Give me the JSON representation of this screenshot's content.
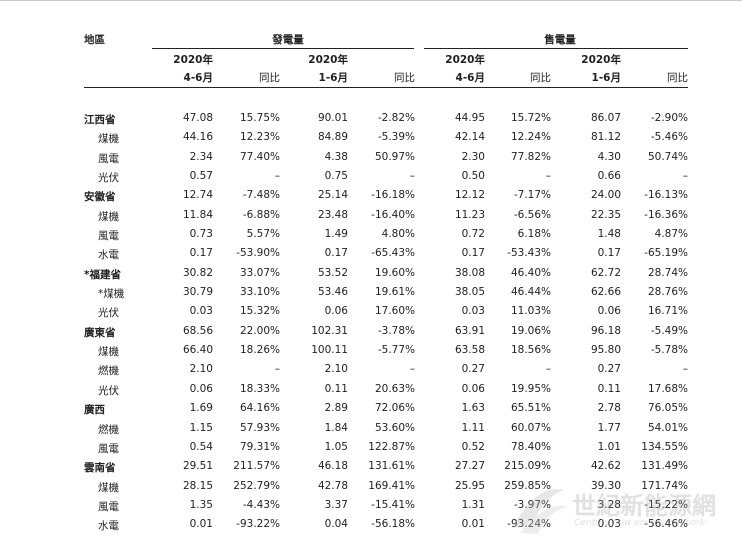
{
  "header": {
    "region_label": "地區",
    "gen_group": "發電量",
    "sales_group": "售電量",
    "cols": [
      {
        "line1": "2020年",
        "line2": "4-6月"
      },
      {
        "line1": "",
        "line2": "同比"
      },
      {
        "line1": "2020年",
        "line2": "1-6月"
      },
      {
        "line1": "",
        "line2": "同比"
      },
      {
        "line1": "2020年",
        "line2": "4-6月"
      },
      {
        "line1": "",
        "line2": "同比"
      },
      {
        "line1": "2020年",
        "line2": "1-6月"
      },
      {
        "line1": "",
        "line2": "同比"
      }
    ]
  },
  "rows": [
    {
      "label": "江西省",
      "type": "prov",
      "v": [
        "47.08",
        "15.75%",
        "90.01",
        "-2.82%",
        "44.95",
        "15.72%",
        "86.07",
        "-2.90%"
      ]
    },
    {
      "label": "煤機",
      "type": "sub",
      "v": [
        "44.16",
        "12.23%",
        "84.89",
        "-5.39%",
        "42.14",
        "12.24%",
        "81.12",
        "-5.46%"
      ]
    },
    {
      "label": "風電",
      "type": "sub",
      "v": [
        "2.34",
        "77.40%",
        "4.38",
        "50.97%",
        "2.30",
        "77.82%",
        "4.30",
        "50.74%"
      ]
    },
    {
      "label": "光伏",
      "type": "sub",
      "v": [
        "0.57",
        "–",
        "0.75",
        "–",
        "0.50",
        "–",
        "0.66",
        "–"
      ]
    },
    {
      "label": "安徽省",
      "type": "prov",
      "v": [
        "12.74",
        "-7.48%",
        "25.14",
        "-16.18%",
        "12.12",
        "-7.17%",
        "24.00",
        "-16.13%"
      ]
    },
    {
      "label": "煤機",
      "type": "sub",
      "v": [
        "11.84",
        "-6.88%",
        "23.48",
        "-16.40%",
        "11.23",
        "-6.56%",
        "22.35",
        "-16.36%"
      ]
    },
    {
      "label": "風電",
      "type": "sub",
      "v": [
        "0.73",
        "5.57%",
        "1.49",
        "4.80%",
        "0.72",
        "6.18%",
        "1.48",
        "4.87%"
      ]
    },
    {
      "label": "水電",
      "type": "sub",
      "v": [
        "0.17",
        "-53.90%",
        "0.17",
        "-65.43%",
        "0.17",
        "-53.43%",
        "0.17",
        "-65.19%"
      ]
    },
    {
      "label": "*福建省",
      "type": "prov",
      "v": [
        "30.82",
        "33.07%",
        "53.52",
        "19.60%",
        "38.08",
        "46.40%",
        "62.72",
        "28.74%"
      ]
    },
    {
      "label": "*煤機",
      "type": "sub",
      "v": [
        "30.79",
        "33.10%",
        "53.46",
        "19.61%",
        "38.05",
        "46.44%",
        "62.66",
        "28.76%"
      ]
    },
    {
      "label": "光伏",
      "type": "sub",
      "v": [
        "0.03",
        "15.32%",
        "0.06",
        "17.60%",
        "0.03",
        "11.03%",
        "0.06",
        "16.71%"
      ]
    },
    {
      "label": "廣東省",
      "type": "prov",
      "v": [
        "68.56",
        "22.00%",
        "102.31",
        "-3.78%",
        "63.91",
        "19.06%",
        "96.18",
        "-5.49%"
      ]
    },
    {
      "label": "煤機",
      "type": "sub",
      "v": [
        "66.40",
        "18.26%",
        "100.11",
        "-5.77%",
        "63.58",
        "18.56%",
        "95.80",
        "-5.78%"
      ]
    },
    {
      "label": "燃機",
      "type": "sub",
      "v": [
        "2.10",
        "–",
        "2.10",
        "–",
        "0.27",
        "–",
        "0.27",
        "–"
      ]
    },
    {
      "label": "光伏",
      "type": "sub",
      "v": [
        "0.06",
        "18.33%",
        "0.11",
        "20.63%",
        "0.06",
        "19.95%",
        "0.11",
        "17.68%"
      ]
    },
    {
      "label": "廣西",
      "type": "prov",
      "v": [
        "1.69",
        "64.16%",
        "2.89",
        "72.06%",
        "1.63",
        "65.51%",
        "2.78",
        "76.05%"
      ]
    },
    {
      "label": "燃機",
      "type": "sub",
      "v": [
        "1.15",
        "57.93%",
        "1.84",
        "53.60%",
        "1.11",
        "60.07%",
        "1.77",
        "54.01%"
      ]
    },
    {
      "label": "風電",
      "type": "sub",
      "v": [
        "0.54",
        "79.31%",
        "1.05",
        "122.87%",
        "0.52",
        "78.40%",
        "1.01",
        "134.55%"
      ]
    },
    {
      "label": "雲南省",
      "type": "prov",
      "v": [
        "29.51",
        "211.57%",
        "46.18",
        "131.61%",
        "27.27",
        "215.09%",
        "42.62",
        "131.49%"
      ]
    },
    {
      "label": "煤機",
      "type": "sub",
      "v": [
        "28.15",
        "252.79%",
        "42.78",
        "169.41%",
        "25.95",
        "259.85%",
        "39.30",
        "171.74%"
      ]
    },
    {
      "label": "風電",
      "type": "sub",
      "v": [
        "1.35",
        "-4.43%",
        "3.37",
        "-15.41%",
        "1.31",
        "-3.97%",
        "3.28",
        "-15.22%"
      ]
    },
    {
      "label": "水電",
      "type": "sub",
      "v": [
        "0.01",
        "-93.22%",
        "0.04",
        "-56.18%",
        "0.01",
        "-93.24%",
        "0.03",
        "-56.46%"
      ]
    }
  ],
  "watermark": {
    "line1": "世紀新能源網",
    "line2": "Century new energy network"
  }
}
